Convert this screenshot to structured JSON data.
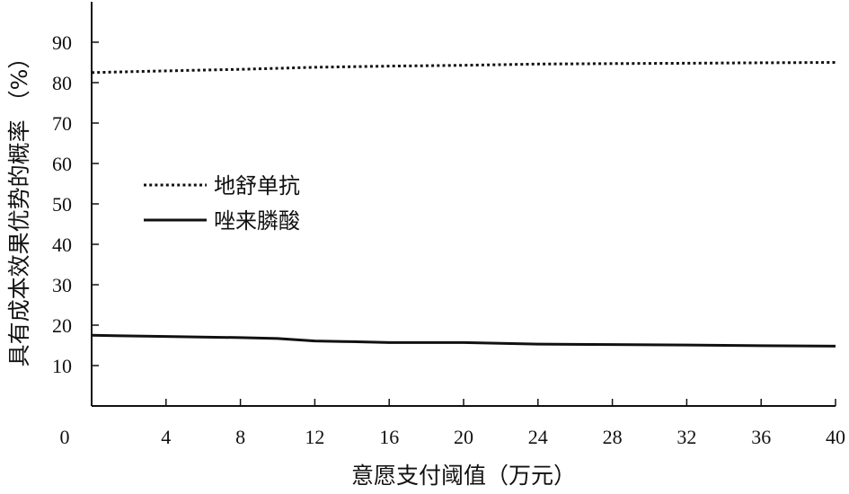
{
  "chart_data": {
    "type": "line",
    "xlabel": "意愿支付阈值（万元）",
    "ylabel": "具有成本效果优势的概率 （%）",
    "xlim": [
      0,
      40
    ],
    "ylim": [
      0,
      100
    ],
    "x_ticks": [
      0,
      4,
      8,
      12,
      16,
      20,
      24,
      28,
      32,
      36,
      40
    ],
    "y_ticks": [
      10,
      20,
      30,
      40,
      50,
      60,
      70,
      80,
      90
    ],
    "x_tick_labels": [
      "0",
      "4",
      "8",
      "12",
      "16",
      "20",
      "24",
      "28",
      "32",
      "36",
      "40"
    ],
    "y_tick_labels": [
      "10",
      "20",
      "30",
      "40",
      "50",
      "60",
      "70",
      "80",
      "90"
    ],
    "legend_position": "center-left",
    "grid": false,
    "series": [
      {
        "name": "地舒单抗",
        "style": "dotted",
        "color": "#111111",
        "x": [
          0,
          4,
          8,
          12,
          16,
          20,
          24,
          28,
          32,
          36,
          40
        ],
        "y": [
          82.5,
          82.9,
          83.3,
          83.8,
          84.1,
          84.3,
          84.6,
          84.7,
          84.8,
          84.9,
          85.0
        ]
      },
      {
        "name": "唑来膦酸",
        "style": "solid",
        "color": "#111111",
        "x": [
          0,
          4,
          8,
          10,
          12,
          14,
          16,
          18,
          20,
          22,
          24,
          28,
          32,
          36,
          40
        ],
        "y": [
          17.5,
          17.2,
          16.9,
          16.7,
          16.1,
          15.9,
          15.7,
          15.7,
          15.7,
          15.5,
          15.3,
          15.2,
          15.1,
          14.9,
          14.8
        ]
      }
    ]
  }
}
